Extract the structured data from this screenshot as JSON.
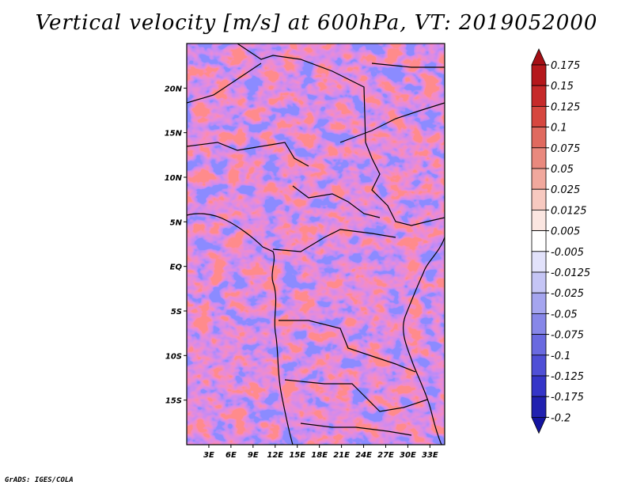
{
  "title": "Vertical velocity [m/s] at 600hPa, VT: 2019052000",
  "credit": "GrADS: IGES/COLA",
  "map": {
    "lat_labels": [
      {
        "label": "20N",
        "lat": 20
      },
      {
        "label": "15N",
        "lat": 15
      },
      {
        "label": "10N",
        "lat": 10
      },
      {
        "label": "5N",
        "lat": 5
      },
      {
        "label": "EQ",
        "lat": 0
      },
      {
        "label": "5S",
        "lat": -5
      },
      {
        "label": "10S",
        "lat": -10
      },
      {
        "label": "15S",
        "lat": -15
      }
    ],
    "lon_labels": [
      {
        "label": "3E",
        "lon": 3
      },
      {
        "label": "6E",
        "lon": 6
      },
      {
        "label": "9E",
        "lon": 9
      },
      {
        "label": "12E",
        "lon": 12
      },
      {
        "label": "15E",
        "lon": 15
      },
      {
        "label": "18E",
        "lon": 18
      },
      {
        "label": "21E",
        "lon": 21
      },
      {
        "label": "24E",
        "lon": 24
      },
      {
        "label": "27E",
        "lon": 27
      },
      {
        "label": "30E",
        "lon": 30
      },
      {
        "label": "33E",
        "lon": 33
      }
    ],
    "lon_range": [
      0,
      35
    ],
    "lat_range": [
      -20,
      25
    ]
  },
  "colorbar": {
    "levels": [
      "0.175",
      "0.15",
      "0.125",
      "0.1",
      "0.075",
      "0.05",
      "0.025",
      "0.0125",
      "0.005",
      "-0.005",
      "-0.0125",
      "-0.025",
      "-0.05",
      "-0.075",
      "-0.1",
      "-0.125",
      "-0.175",
      "-0.2"
    ],
    "colors": [
      "#a50f15",
      "#b5181c",
      "#c62a2a",
      "#d6473f",
      "#e06a5f",
      "#e9897e",
      "#f1a89d",
      "#f7c9c0",
      "#fbe6e1",
      "#ffffff",
      "#e2e2fb",
      "#c5c5f5",
      "#a5a5ef",
      "#8787e8",
      "#6a6ae0",
      "#4f4fd6",
      "#3535c8",
      "#2121b0",
      "#1414a0"
    ]
  }
}
